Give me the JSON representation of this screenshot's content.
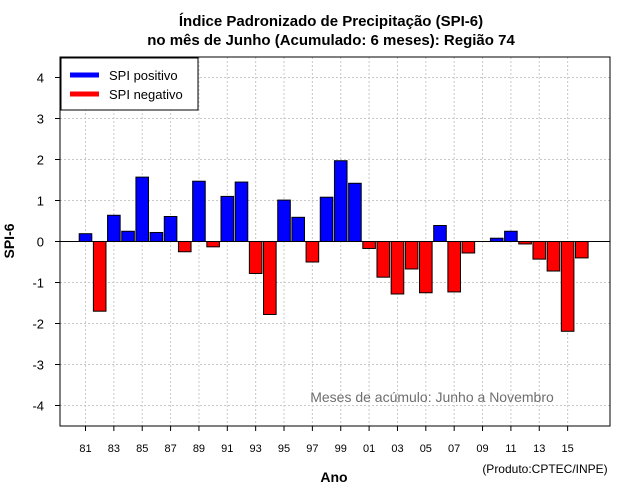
{
  "chart_data": {
    "type": "bar",
    "title": "Índice Padronizado de Precipitação (SPI-6)",
    "subtitle": "no mês de Junho (Acumulado: 6 meses): Região 74",
    "xlabel": "Ano",
    "ylabel": "SPI-6",
    "ylim": [
      -4.5,
      4.5
    ],
    "yticks": [
      -4,
      -3,
      -2,
      -1,
      0,
      1,
      2,
      3,
      4
    ],
    "grid": true,
    "years": [
      1981,
      1982,
      1983,
      1984,
      1985,
      1986,
      1987,
      1988,
      1989,
      1990,
      1991,
      1992,
      1993,
      1994,
      1995,
      1996,
      1997,
      1998,
      1999,
      2000,
      2001,
      2002,
      2003,
      2004,
      2005,
      2006,
      2007,
      2008,
      2009,
      2010,
      2011,
      2012,
      2013,
      2014,
      2015,
      2016
    ],
    "xtick_labels": [
      "81",
      "83",
      "85",
      "87",
      "89",
      "91",
      "93",
      "95",
      "97",
      "99",
      "01",
      "03",
      "05",
      "07",
      "09",
      "11",
      "13",
      "15"
    ],
    "values": [
      0.19,
      -1.7,
      0.64,
      0.25,
      1.57,
      0.22,
      0.61,
      -0.25,
      1.47,
      -0.13,
      1.1,
      1.45,
      -0.78,
      -1.78,
      1.01,
      0.59,
      -0.5,
      1.08,
      1.97,
      1.42,
      -0.17,
      -0.87,
      -1.28,
      -0.67,
      -1.25,
      0.39,
      -1.23,
      -0.28,
      0.0,
      0.08,
      0.25,
      -0.06,
      -0.43,
      -0.72,
      -2.19,
      -0.4
    ],
    "legend": {
      "placement": "top-left",
      "entries": [
        {
          "label": "SPI positivo",
          "color": "#0000ff"
        },
        {
          "label": "SPI negativo",
          "color": "#ff0000"
        }
      ]
    },
    "annotation": "Meses de acúmulo: Junho a Novembro",
    "credit": "(Produto:CPTEC/INPE)",
    "colors": {
      "positive": "#0000ff",
      "negative": "#ff0000",
      "grid": "#c8c8c8",
      "annotation": "#6e6e6e"
    }
  }
}
